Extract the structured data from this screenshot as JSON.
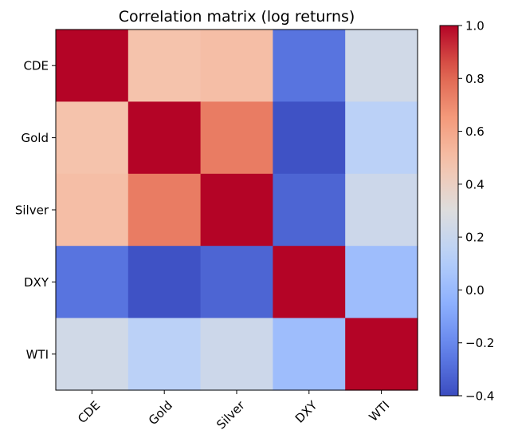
{
  "chart_data": {
    "type": "heatmap",
    "title": "Correlation matrix (log returns)",
    "xlabel": "",
    "ylabel": "",
    "x_categories": [
      "CDE",
      "Gold",
      "Silver",
      "DXY",
      "WTI"
    ],
    "y_categories": [
      "CDE",
      "Gold",
      "Silver",
      "DXY",
      "WTI"
    ],
    "values": [
      [
        1.0,
        0.48,
        0.5,
        -0.27,
        0.24
      ],
      [
        0.48,
        1.0,
        0.74,
        -0.38,
        0.14
      ],
      [
        0.5,
        0.74,
        1.0,
        -0.32,
        0.22
      ],
      [
        -0.27,
        -0.38,
        -0.32,
        1.0,
        0.02
      ],
      [
        0.24,
        0.14,
        0.22,
        0.02,
        1.0
      ]
    ],
    "colormap": "coolwarm",
    "colorbar": {
      "range": [
        -0.4,
        1.0
      ],
      "ticks": [
        -0.4,
        -0.2,
        0.0,
        0.2,
        0.4,
        0.6,
        0.8,
        1.0
      ],
      "tick_labels": [
        "−0.4",
        "−0.2",
        "0.0",
        "0.2",
        "0.4",
        "0.6",
        "0.8",
        "1.0"
      ]
    },
    "grid": false
  }
}
